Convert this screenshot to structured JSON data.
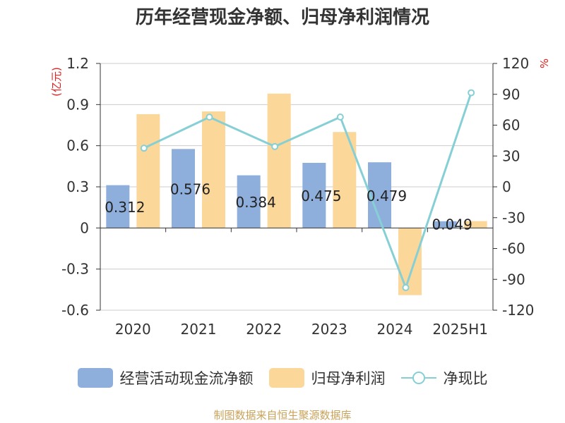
{
  "title": "历年经营现金净额、归母净利润情况",
  "source": "制图数据来自恒生聚源数据库",
  "colors": {
    "cash_flow": "#8eaedc",
    "net_profit": "#fcd79a",
    "ratio": "#86d0d5",
    "unit_label": "#e02020"
  },
  "chart_data": {
    "type": "bar",
    "categories": [
      "2020",
      "2021",
      "2022",
      "2023",
      "2024",
      "2025H1"
    ],
    "left_axis": {
      "unit": "(亿元)",
      "ylim": [
        -0.6,
        1.2
      ],
      "ticks": [
        "1.2",
        "0.9",
        "0.6",
        "0.3",
        "0",
        "-0.3",
        "-0.6"
      ]
    },
    "right_axis": {
      "unit": "%",
      "ylim": [
        -120,
        120
      ],
      "ticks": [
        "120",
        "90",
        "60",
        "30",
        "0",
        "-30",
        "-60",
        "-90",
        "-120"
      ]
    },
    "series": [
      {
        "name": "经营活动现金流净额",
        "type": "bar",
        "axis": "left",
        "values": [
          0.312,
          0.576,
          0.384,
          0.475,
          0.479,
          0.049
        ],
        "labels": [
          "0.312",
          "0.576",
          "0.384",
          "0.475",
          "0.479",
          "0.049"
        ]
      },
      {
        "name": "归母净利润",
        "type": "bar",
        "axis": "left",
        "values": [
          0.83,
          0.85,
          0.98,
          0.7,
          -0.49,
          0.05
        ]
      },
      {
        "name": "净现比",
        "type": "line",
        "axis": "right",
        "values": [
          37.6,
          67.8,
          39.2,
          67.9,
          -98.0,
          91.5
        ]
      }
    ],
    "grid": true
  }
}
